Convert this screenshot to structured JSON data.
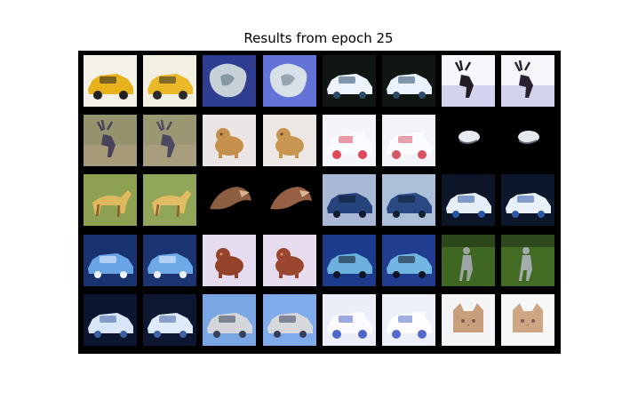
{
  "figure": {
    "title": "Results from epoch 25"
  },
  "grid": {
    "rows": 5,
    "columns": 8,
    "pairs_per_row": 4,
    "background": "#000000",
    "tiles": [
      {
        "subject": "taxi",
        "bg": "#f4f1e8",
        "main": "#e8b21c",
        "accent": "#222222"
      },
      {
        "subject": "taxi",
        "bg": "#f2f0e3",
        "main": "#ebb827",
        "accent": "#2b2b2b"
      },
      {
        "subject": "blob",
        "bg": "#2f3d91",
        "main": "#c7d2d8",
        "accent": "#6b7f8c"
      },
      {
        "subject": "blob",
        "bg": "#6373d8",
        "main": "#d8e0e8",
        "accent": "#7e8d98"
      },
      {
        "subject": "car",
        "bg": "#101612",
        "main": "#eef4ff",
        "accent": "#294a66"
      },
      {
        "subject": "car",
        "bg": "#0f1511",
        "main": "#eaf2ff",
        "accent": "#2b4a66"
      },
      {
        "subject": "deer",
        "bg": "#f7f7fb",
        "main": "#231d26",
        "accent": "#8f8fd4"
      },
      {
        "subject": "deer",
        "bg": "#f5f5fa",
        "main": "#2a2230",
        "accent": "#9595d8"
      },
      {
        "subject": "deer",
        "bg": "#95936d",
        "main": "#48435a",
        "accent": "#c8a98d"
      },
      {
        "subject": "deer",
        "bg": "#999873",
        "main": "#4f4861",
        "accent": "#c7aa8f"
      },
      {
        "subject": "dog",
        "bg": "#ebe6e5",
        "main": "#c58f4c",
        "accent": "#5f4935"
      },
      {
        "subject": "dog",
        "bg": "#ede7e6",
        "main": "#c99651",
        "accent": "#60493a"
      },
      {
        "subject": "truck",
        "bg": "#f4f5fb",
        "main": "#f9fbff",
        "accent": "#dd4a5a"
      },
      {
        "subject": "truck",
        "bg": "#f2f4fa",
        "main": "#fbfcff",
        "accent": "#d85565"
      },
      {
        "subject": "dark",
        "bg": "#000000",
        "main": "#e7ebef",
        "accent": "#606a74"
      },
      {
        "subject": "dark",
        "bg": "#000000",
        "main": "#e4e9ee",
        "accent": "#65707a"
      },
      {
        "subject": "horse",
        "bg": "#8ea052",
        "main": "#ddb85e",
        "accent": "#8b5e27"
      },
      {
        "subject": "horse",
        "bg": "#91a658",
        "main": "#e0bc65",
        "accent": "#8d612d"
      },
      {
        "subject": "bird",
        "bg": "#000000",
        "main": "#8d5e42",
        "accent": "#d6b38e"
      },
      {
        "subject": "bird",
        "bg": "#000000",
        "main": "#955f43",
        "accent": "#dcb595"
      },
      {
        "subject": "car",
        "bg": "#a9b8d4",
        "main": "#27437e",
        "accent": "#0f1b2d"
      },
      {
        "subject": "car",
        "bg": "#acc1d9",
        "main": "#2b4a83",
        "accent": "#12202f"
      },
      {
        "subject": "car",
        "bg": "#0c1628",
        "main": "#e6eef8",
        "accent": "#2854a2"
      },
      {
        "subject": "car",
        "bg": "#0d172b",
        "main": "#e8f0fa",
        "accent": "#2c58a6"
      },
      {
        "subject": "car",
        "bg": "#18316f",
        "main": "#69a4e6",
        "accent": "#f0f4fb"
      },
      {
        "subject": "car",
        "bg": "#1a3572",
        "main": "#6eaae8",
        "accent": "#eef3fb"
      },
      {
        "subject": "dog",
        "bg": "#e6dcef",
        "main": "#93432a",
        "accent": "#d98b58"
      },
      {
        "subject": "dog",
        "bg": "#e8ddef",
        "main": "#9a4630",
        "accent": "#dc8f5d"
      },
      {
        "subject": "car",
        "bg": "#1d3b8d",
        "main": "#6cb0de",
        "accent": "#0f1420"
      },
      {
        "subject": "car",
        "bg": "#213d8f",
        "main": "#72b6e3",
        "accent": "#11141f"
      },
      {
        "subject": "person",
        "bg": "#3e6821",
        "main": "#9ea5a6",
        "accent": "#1d2c16"
      },
      {
        "subject": "person",
        "bg": "#426c24",
        "main": "#a5acad",
        "accent": "#1f2e18"
      },
      {
        "subject": "car",
        "bg": "#0c1530",
        "main": "#d9e6f8",
        "accent": "#3c5ea2"
      },
      {
        "subject": "car",
        "bg": "#0e1732",
        "main": "#dfebfa",
        "accent": "#4262a6"
      },
      {
        "subject": "car",
        "bg": "#7aa7e4",
        "main": "#d4d6da",
        "accent": "#364058"
      },
      {
        "subject": "car",
        "bg": "#7fabeb",
        "main": "#d7d8dc",
        "accent": "#384059"
      },
      {
        "subject": "truck",
        "bg": "#ebeef8",
        "main": "#fbfbff",
        "accent": "#4f65c8"
      },
      {
        "subject": "truck",
        "bg": "#edf0f8",
        "main": "#fdfdff",
        "accent": "#566acc"
      },
      {
        "subject": "cat",
        "bg": "#f5f5f7",
        "main": "#c89f7c",
        "accent": "#7a5b52"
      },
      {
        "subject": "cat",
        "bg": "#f7f7f8",
        "main": "#cfa683",
        "accent": "#7e5e55"
      }
    ]
  }
}
